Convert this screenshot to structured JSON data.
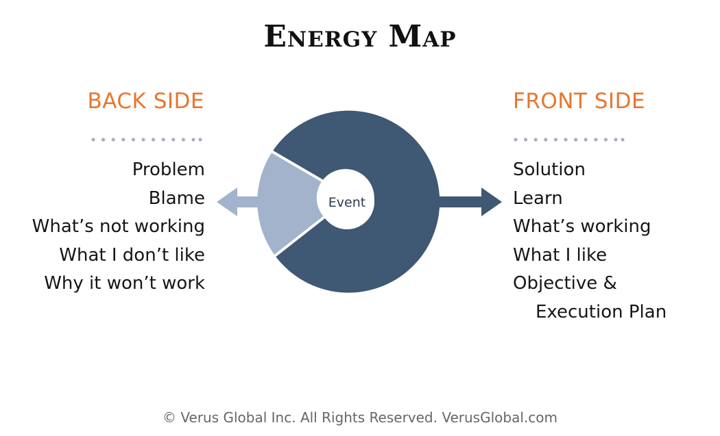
{
  "title": "Energy Map",
  "back_side": {
    "heading": "BACK SIDE",
    "items": [
      "Problem",
      "Blame",
      "What’s not working",
      "What I don’t like",
      "Why it won’t work"
    ]
  },
  "front_side": {
    "heading": "FRONT SIDE",
    "items": [
      "Solution",
      "Learn",
      "What’s working",
      "What I like",
      "Objective &",
      "Execution Plan"
    ]
  },
  "center": {
    "label": "Event"
  },
  "footer": "© Verus Global Inc. All Rights Reserved. VerusGlobal.com",
  "colors": {
    "heading": "#e8762d",
    "ring_dark": "#3f5873",
    "ring_light": "#a2b3cb",
    "dots": "#a6b0bf",
    "text": "#151515"
  }
}
